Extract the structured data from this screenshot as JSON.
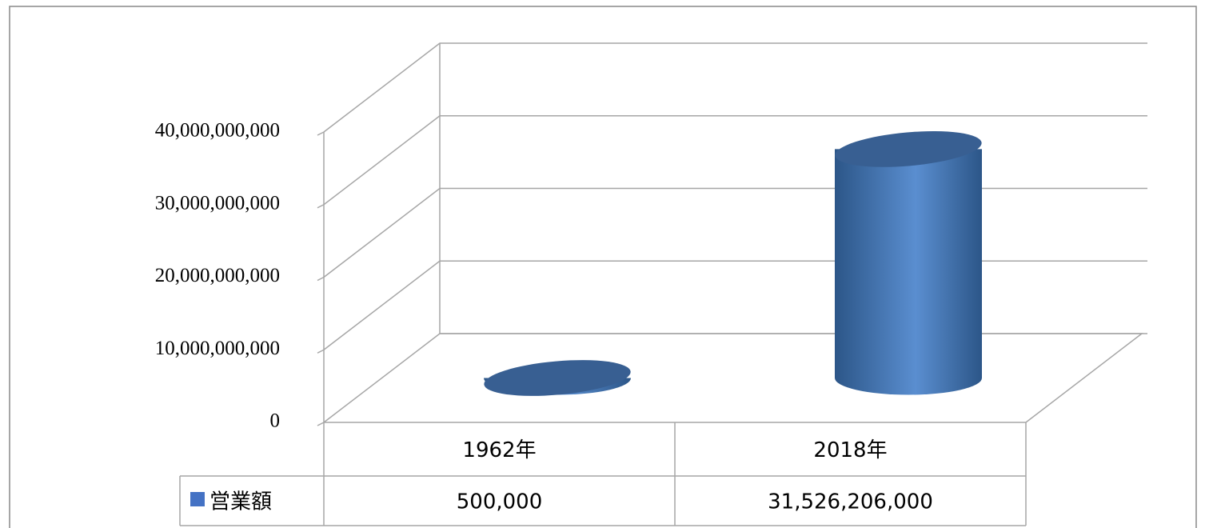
{
  "chart_data": {
    "type": "cylinder3d",
    "categories": [
      "1962年",
      "2018年"
    ],
    "series": [
      {
        "name": "営業額",
        "color": "#4472c4",
        "values": [
          500000,
          31526206000
        ],
        "value_labels": [
          "500,000",
          "31,526,206,000"
        ]
      }
    ],
    "ylim": [
      0,
      40000000000
    ],
    "yticks": [
      0,
      {
        "value": 10000000000,
        "label": "10,000,000,000"
      },
      {
        "value": 20000000000,
        "label": "20,000,000,000"
      },
      {
        "value": 30000000000,
        "label": "30,000,000,000"
      },
      {
        "value": 40000000000,
        "label": "40,000,000,000"
      }
    ],
    "grid": true,
    "data_table": true
  }
}
